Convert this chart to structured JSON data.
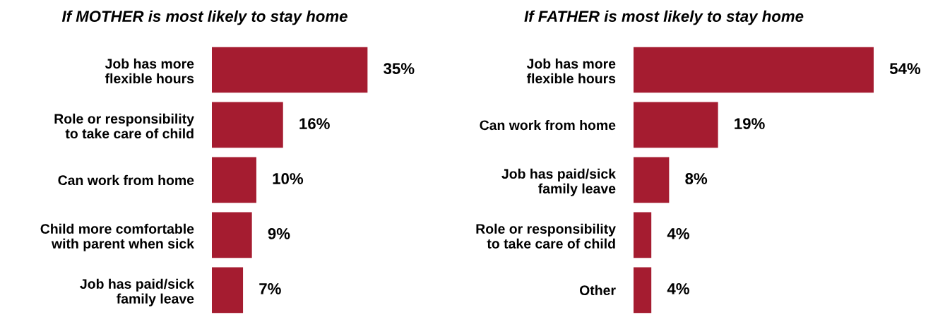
{
  "chart_data": [
    {
      "type": "bar",
      "orientation": "horizontal",
      "title": "If MOTHER is most likely to stay home",
      "categories": [
        "Job has more\nflexible hours",
        "Role or responsibility\nto take care of child",
        "Can work from home",
        "Child more comfortable\nwith parent when sick",
        "Job has paid/sick\nfamily leave"
      ],
      "values": [
        35,
        16,
        10,
        9,
        7
      ],
      "color": "#a51c30",
      "value_labels": [
        "35%",
        "16%",
        "10%",
        "9%",
        "7%"
      ],
      "tick_labels": "y",
      "grid": false,
      "legend": false
    },
    {
      "type": "bar",
      "orientation": "horizontal",
      "title": "If FATHER is most likely to stay home",
      "categories": [
        "Job has more\nflexible hours",
        "Can work from home",
        "Job has paid/sick\nfamily leave",
        "Role or responsibility\nto take care of child",
        "Other"
      ],
      "values": [
        54,
        19,
        8,
        4,
        4
      ],
      "color": "#a51c30",
      "value_labels": [
        "54%",
        "19%",
        "8%",
        "4%",
        "4%"
      ],
      "tick_labels": "y",
      "grid": false,
      "legend": false
    }
  ]
}
